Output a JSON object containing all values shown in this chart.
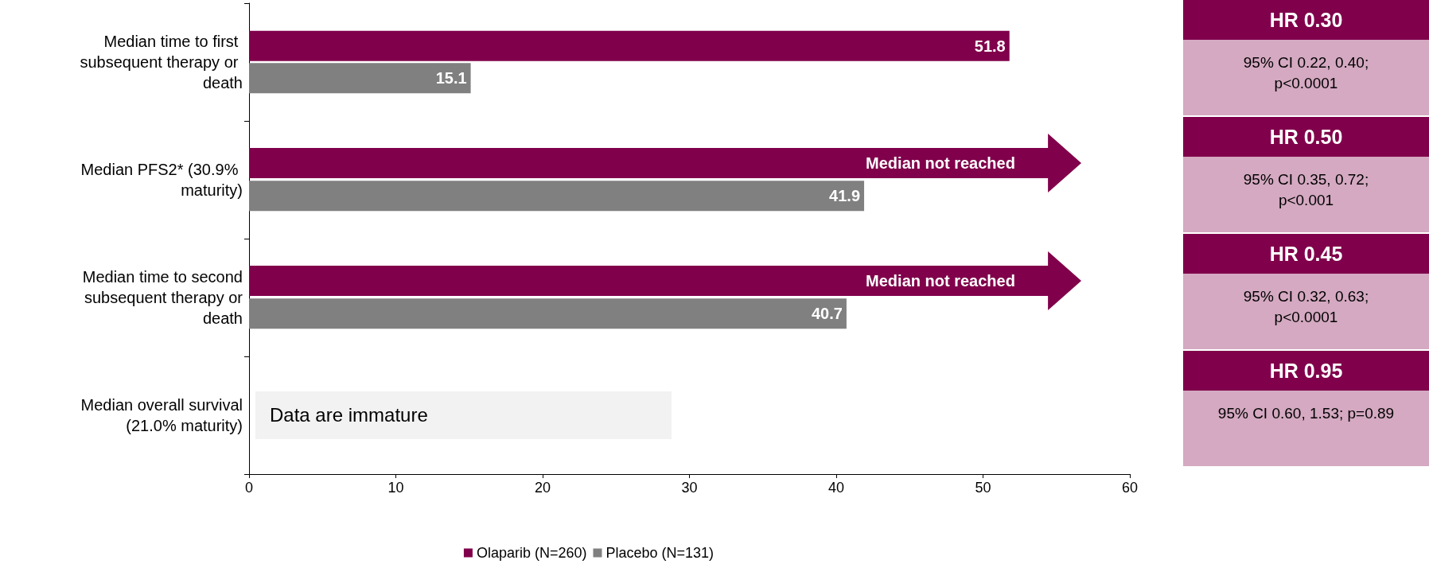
{
  "chart_data": [
    {
      "type": "bar",
      "orientation": "horizontal",
      "categories": [
        "Median time to first subsequent therapy or death",
        "Median PFS2* (30.9% maturity)",
        "Median time to second subsequent therapy or death",
        "Median overall survival (21.0% maturity)"
      ],
      "series": [
        {
          "name": "Olaparib (N=260)",
          "color": "#80004b",
          "values": [
            51.8,
            null,
            null,
            null
          ]
        },
        {
          "name": "Placebo (N=131)",
          "color": "#808080",
          "values": [
            15.1,
            41.9,
            40.7,
            null
          ]
        }
      ],
      "xlim": [
        0,
        60
      ],
      "xticks": [
        0,
        10,
        20,
        30,
        40,
        50,
        60
      ],
      "grid": false,
      "legend": "bottom",
      "data_labels": true,
      "annotations": [
        "Median not reached",
        "Median not reached",
        "Data are immature"
      ]
    },
    {
      "type": "other",
      "annotations": [
        "HR 0.30",
        "95% CI 0.22, 0.40; p<0.0001",
        "HR 0.50",
        "95% CI 0.35, 0.72; p<0.001",
        "HR 0.45",
        "95% CI 0.32, 0.63; p<0.0001",
        "HR 0.95",
        "95% CI 0.60, 1.53; p=0.89"
      ]
    }
  ]
}
